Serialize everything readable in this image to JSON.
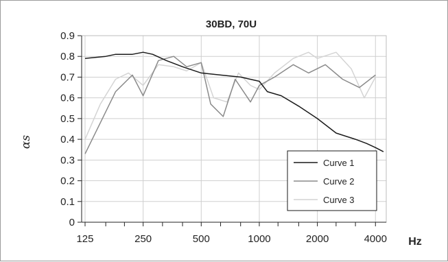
{
  "chart_data": {
    "type": "line",
    "title": "30BD, 70U",
    "xlabel": "Hz",
    "ylabel": "αs",
    "x_scale": "log",
    "x": [
      125,
      160,
      200,
      250,
      315,
      400,
      500,
      630,
      800,
      1000,
      1250,
      1600,
      2000,
      2500,
      3150,
      4000
    ],
    "x_ticks": [
      "125",
      "250",
      "500",
      "1000",
      "2000",
      "4000"
    ],
    "ylim": [
      0,
      0.9
    ],
    "y_ticks": [
      "0",
      "0.1",
      "0.2",
      "0.3",
      "0.4",
      "0.5",
      "0.6",
      "0.7",
      "0.8",
      "0.9"
    ],
    "grid": true,
    "legend_position": "bottom-right",
    "series": [
      {
        "name": "Curve 1",
        "color": "#1a1a1a",
        "points": [
          [
            125,
            0.79
          ],
          [
            160,
            0.8
          ],
          [
            180,
            0.81
          ],
          [
            220,
            0.81
          ],
          [
            250,
            0.82
          ],
          [
            280,
            0.81
          ],
          [
            330,
            0.78
          ],
          [
            400,
            0.75
          ],
          [
            500,
            0.72
          ],
          [
            630,
            0.71
          ],
          [
            800,
            0.7
          ],
          [
            1000,
            0.68
          ],
          [
            1100,
            0.63
          ],
          [
            1300,
            0.61
          ],
          [
            1600,
            0.56
          ],
          [
            2000,
            0.5
          ],
          [
            2500,
            0.43
          ],
          [
            3150,
            0.4
          ],
          [
            3600,
            0.38
          ],
          [
            4000,
            0.36
          ],
          [
            4400,
            0.34
          ]
        ]
      },
      {
        "name": "Curve 2",
        "color": "#8a8a8a",
        "points": [
          [
            125,
            0.33
          ],
          [
            150,
            0.48
          ],
          [
            180,
            0.63
          ],
          [
            220,
            0.71
          ],
          [
            250,
            0.61
          ],
          [
            300,
            0.78
          ],
          [
            360,
            0.8
          ],
          [
            420,
            0.75
          ],
          [
            500,
            0.77
          ],
          [
            560,
            0.57
          ],
          [
            650,
            0.51
          ],
          [
            750,
            0.69
          ],
          [
            900,
            0.58
          ],
          [
            1000,
            0.66
          ],
          [
            1200,
            0.7
          ],
          [
            1500,
            0.76
          ],
          [
            1800,
            0.72
          ],
          [
            2200,
            0.76
          ],
          [
            2700,
            0.69
          ],
          [
            3300,
            0.65
          ],
          [
            4000,
            0.71
          ]
        ]
      },
      {
        "name": "Curve 3",
        "color": "#d4d4d4",
        "points": [
          [
            125,
            0.4
          ],
          [
            150,
            0.57
          ],
          [
            180,
            0.69
          ],
          [
            210,
            0.72
          ],
          [
            250,
            0.66
          ],
          [
            300,
            0.76
          ],
          [
            360,
            0.75
          ],
          [
            420,
            0.73
          ],
          [
            500,
            0.77
          ],
          [
            580,
            0.6
          ],
          [
            680,
            0.58
          ],
          [
            780,
            0.72
          ],
          [
            900,
            0.66
          ],
          [
            1000,
            0.64
          ],
          [
            1200,
            0.72
          ],
          [
            1500,
            0.79
          ],
          [
            1800,
            0.82
          ],
          [
            2000,
            0.79
          ],
          [
            2500,
            0.82
          ],
          [
            3000,
            0.74
          ],
          [
            3500,
            0.6
          ],
          [
            4000,
            0.7
          ]
        ]
      }
    ]
  }
}
